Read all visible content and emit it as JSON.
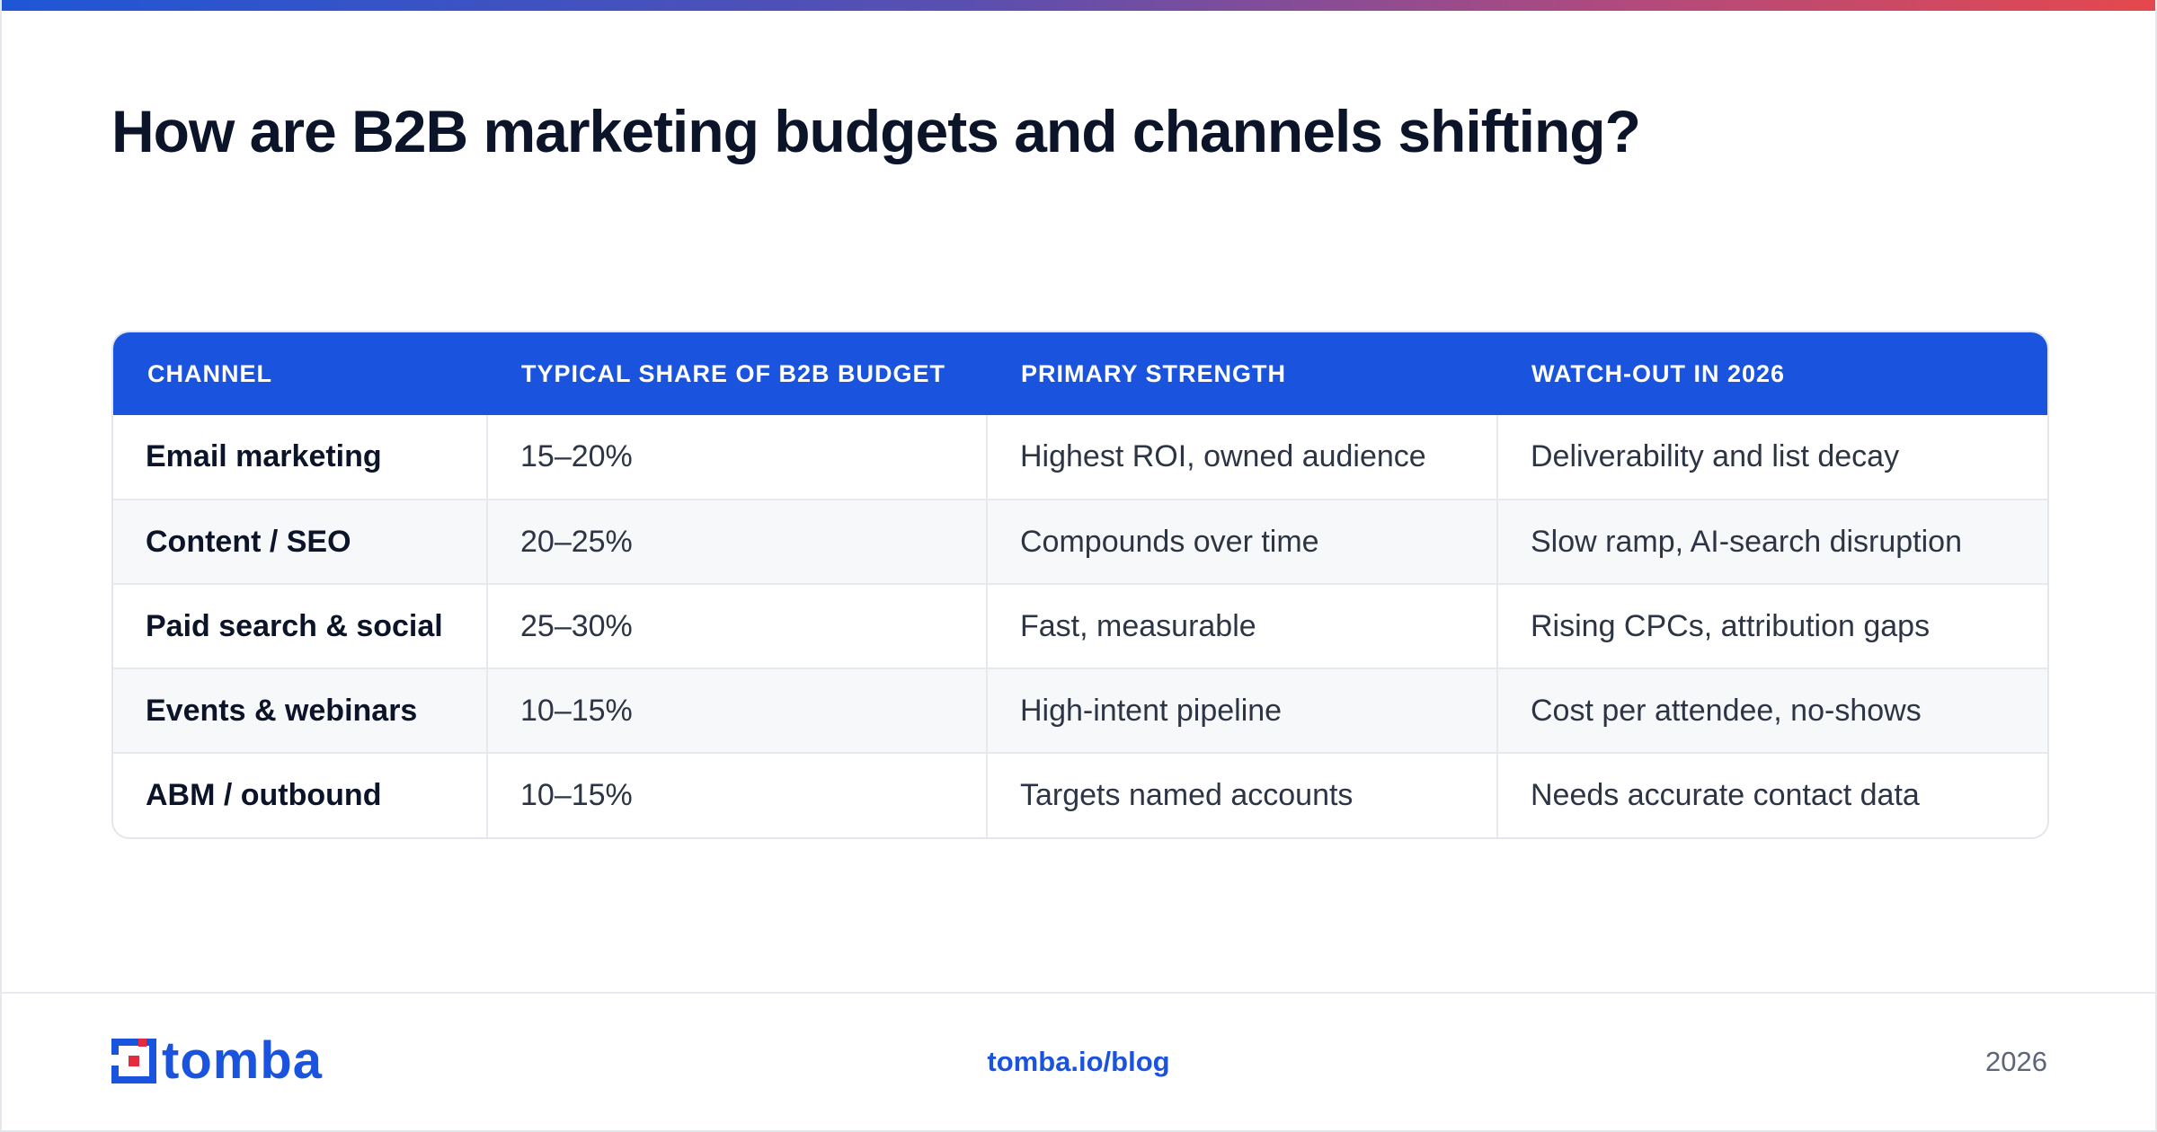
{
  "title": "How are B2B marketing budgets and channels shifting?",
  "colors": {
    "accent": "#1a54de",
    "gradient_start": "#1f56d6",
    "gradient_end": "#e5484d",
    "logo_red": "#e5293e"
  },
  "table": {
    "headers": [
      "CHANNEL",
      "TYPICAL SHARE OF B2B BUDGET",
      "PRIMARY STRENGTH",
      "WATCH-OUT IN 2026"
    ],
    "rows": [
      [
        "Email marketing",
        "15–20%",
        "Highest ROI, owned audience",
        "Deliverability and list decay"
      ],
      [
        "Content / SEO",
        "20–25%",
        "Compounds over time",
        "Slow ramp, AI-search disruption"
      ],
      [
        "Paid search & social",
        "25–30%",
        "Fast, measurable",
        "Rising CPCs, attribution gaps"
      ],
      [
        "Events & webinars",
        "10–15%",
        "High-intent pipeline",
        "Cost per attendee, no-shows"
      ],
      [
        "ABM / outbound",
        "10–15%",
        "Targets named accounts",
        "Needs accurate contact data"
      ]
    ]
  },
  "footer": {
    "logo_text": "tomba",
    "link": "tomba.io/blog",
    "year": "2026"
  }
}
